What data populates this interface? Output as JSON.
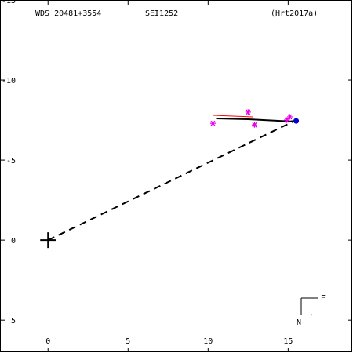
{
  "header": {
    "left": "WDS 20481+3554",
    "center": "SEI1252",
    "right": "(Hrt2017a)"
  },
  "compass": {
    "east_label": "E",
    "north_label": "N",
    "arrow": "→"
  },
  "chart_data": {
    "type": "scatter",
    "title": "",
    "xlabel": "",
    "ylabel": "",
    "xlim": [
      -3,
      19
    ],
    "ylim": [
      -7,
      15
    ],
    "x_ticks": [
      0,
      5,
      10,
      15
    ],
    "y_ticks": [
      -5,
      0,
      5,
      10,
      15
    ],
    "y_tick_labels": [
      "5",
      "0",
      "-5",
      "-10",
      "-15"
    ],
    "primary": {
      "x": 0,
      "y": 0,
      "marker": "plus"
    },
    "dashed_line": {
      "from": [
        0,
        0
      ],
      "to": [
        15.5,
        7.5
      ]
    },
    "orbit_path": {
      "x": [
        10.5,
        12.5,
        14.5,
        15.1,
        15.5
      ],
      "y": [
        7.6,
        7.55,
        7.45,
        7.42,
        7.45
      ]
    },
    "observations": {
      "color": "#e600e6",
      "x": [
        10.3,
        12.5,
        12.9,
        14.9,
        15.1
      ],
      "y": [
        7.3,
        8.0,
        7.2,
        7.5,
        7.7
      ]
    },
    "residual_lines": {
      "color": "#ff0000",
      "segments": [
        [
          10.3,
          7.8,
          12.8,
          7.7
        ]
      ]
    },
    "latest": {
      "x": 15.5,
      "y": 7.45,
      "color": "#0000cc"
    },
    "grid": false
  }
}
